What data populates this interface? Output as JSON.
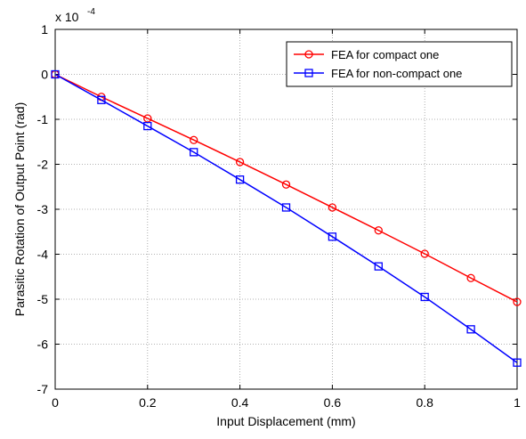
{
  "chart_data": {
    "type": "line",
    "xlabel": "Input Displacement (mm)",
    "ylabel": "Parasitic Rotation of Output Point (rad)",
    "exponent_label": "x 10",
    "exponent_power": "-4",
    "xlim": [
      0,
      1
    ],
    "ylim": [
      -7,
      1
    ],
    "grid": true,
    "legend_position": "top-right",
    "x_ticks": [
      {
        "value": 0,
        "label": "0"
      },
      {
        "value": 0.2,
        "label": "0.2"
      },
      {
        "value": 0.4,
        "label": "0.4"
      },
      {
        "value": 0.6,
        "label": "0.6"
      },
      {
        "value": 0.8,
        "label": "0.8"
      },
      {
        "value": 1,
        "label": "1"
      }
    ],
    "y_ticks": [
      {
        "value": 1,
        "label": "1"
      },
      {
        "value": 0,
        "label": "0"
      },
      {
        "value": -1,
        "label": "-1"
      },
      {
        "value": -2,
        "label": "-2"
      },
      {
        "value": -3,
        "label": "-3"
      },
      {
        "value": -4,
        "label": "-4"
      },
      {
        "value": -5,
        "label": "-5"
      },
      {
        "value": -6,
        "label": "-6"
      },
      {
        "value": -7,
        "label": "-7"
      }
    ],
    "x": [
      0,
      0.1,
      0.2,
      0.3,
      0.4,
      0.5,
      0.6,
      0.7,
      0.8,
      0.9,
      1.0
    ],
    "series": [
      {
        "name": "FEA for compact one",
        "color": "#ff0000",
        "marker": "circle",
        "values": [
          0,
          -0.5,
          -0.98,
          -1.46,
          -1.95,
          -2.45,
          -2.96,
          -3.47,
          -3.99,
          -4.53,
          -5.06
        ]
      },
      {
        "name": "FEA for non-compact one",
        "color": "#0000ff",
        "marker": "square",
        "values": [
          0,
          -0.57,
          -1.15,
          -1.73,
          -2.34,
          -2.96,
          -3.61,
          -4.27,
          -4.95,
          -5.67,
          -6.41
        ]
      }
    ]
  }
}
